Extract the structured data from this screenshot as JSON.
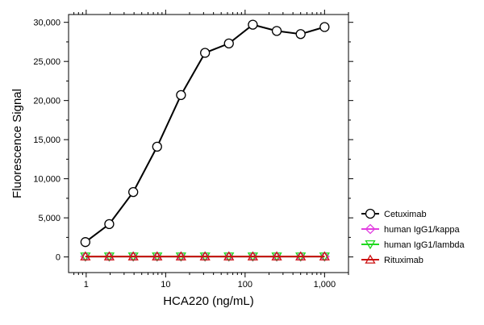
{
  "chart_data": {
    "type": "line",
    "xlabel": "HCA220 (ng/mL)",
    "ylabel": "Fluorescence Signal",
    "x_scale": "log",
    "xlim": [
      0.6,
      2000
    ],
    "ylim": [
      -2000,
      31000
    ],
    "x_ticks": [
      1,
      10,
      100,
      1000
    ],
    "x_tick_labels": [
      "1",
      "10",
      "100",
      "1,000"
    ],
    "y_ticks": [
      0,
      5000,
      10000,
      15000,
      20000,
      25000,
      30000
    ],
    "y_tick_labels": [
      "0",
      "5,000",
      "10,000",
      "15,000",
      "20,000",
      "25,000",
      "30,000"
    ],
    "x": [
      0.977,
      1.95,
      3.91,
      7.81,
      15.6,
      31.3,
      62.5,
      125,
      250,
      500,
      1000
    ],
    "series": [
      {
        "name": "Cetuximab",
        "color": "#000000",
        "marker": "circle",
        "values": [
          1900,
          4200,
          8300,
          14100,
          20700,
          26100,
          27300,
          29700,
          28900,
          28500,
          29400
        ]
      },
      {
        "name": "human IgG1/kappa",
        "color": "#e23fe0",
        "marker": "diamond",
        "values": [
          50,
          50,
          50,
          50,
          50,
          50,
          50,
          50,
          50,
          50,
          50
        ]
      },
      {
        "name": "human IgG1/lambda",
        "color": "#1fd81f",
        "marker": "triangle-down",
        "values": [
          50,
          50,
          50,
          50,
          50,
          50,
          50,
          50,
          50,
          50,
          50
        ]
      },
      {
        "name": "Rituximab",
        "color": "#cc1111",
        "marker": "triangle-up",
        "values": [
          50,
          50,
          50,
          50,
          50,
          50,
          50,
          50,
          50,
          50,
          50
        ]
      }
    ],
    "legend_position": "right",
    "grid": false
  }
}
